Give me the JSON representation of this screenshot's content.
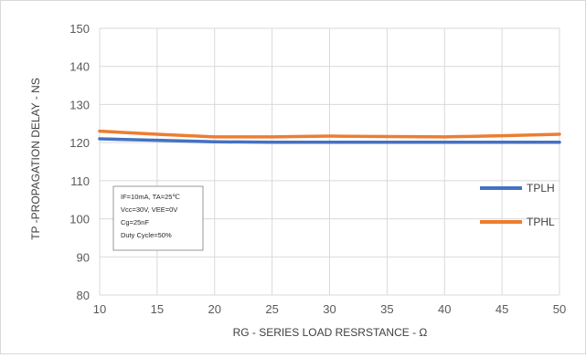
{
  "chart_data": {
    "type": "line",
    "title": "",
    "xlabel": "RG - SERIES LOAD RESRSTANCE - Ω",
    "ylabel": "TP -PROPAGATION DELAY - NS",
    "xlim": [
      10,
      50
    ],
    "ylim": [
      80,
      150
    ],
    "xticks": [
      10,
      15,
      20,
      25,
      30,
      35,
      40,
      45,
      50
    ],
    "yticks": [
      80,
      90,
      100,
      110,
      120,
      130,
      140,
      150
    ],
    "grid": true,
    "legend": "right",
    "x": [
      10,
      15,
      20,
      25,
      30,
      35,
      40,
      45,
      50
    ],
    "series": [
      {
        "name": "TPLH",
        "color": "#4472c4",
        "values": [
          121,
          120.6,
          120.2,
          120.1,
          120.1,
          120.1,
          120.1,
          120.1,
          120.1
        ]
      },
      {
        "name": "TPHL",
        "color": "#ed7d31",
        "values": [
          123,
          122.2,
          121.5,
          121.5,
          121.7,
          121.6,
          121.5,
          121.8,
          122.2
        ]
      }
    ],
    "annotation": {
      "lines": [
        "IF=10mA,  TA=25℃",
        "Vcc=30V, VEE=0V",
        "Cg=25nF",
        "Duty Cycle=50%"
      ]
    }
  }
}
